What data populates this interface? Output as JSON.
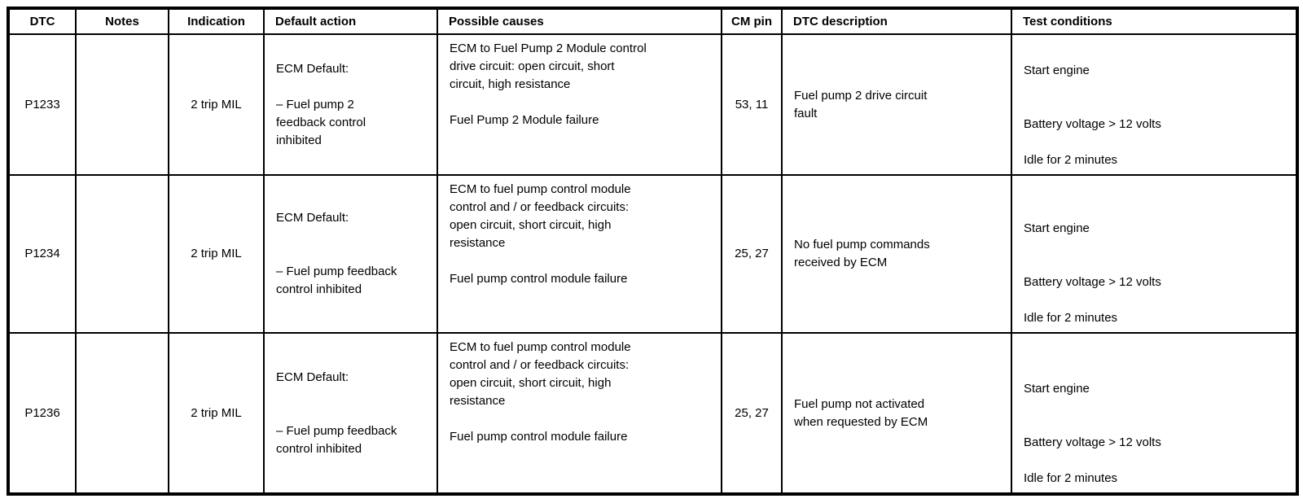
{
  "table": {
    "header": {
      "dtc": "DTC",
      "notes": "Notes",
      "indication": "Indication",
      "default_action": "Default action",
      "possible_causes": "Possible causes",
      "cm_pin": "CM pin",
      "dtc_description": "DTC description",
      "test_conditions": "Test conditions"
    },
    "rows": [
      {
        "dtc": "P1233",
        "notes": "",
        "indication": "2 trip MIL",
        "default_action": "ECM Default:\n\n– Fuel pump 2\nfeedback control\ninhibited",
        "possible_causes": "ECM to Fuel Pump 2 Module control\ndrive circuit: open circuit, short\ncircuit, high resistance\n\nFuel Pump 2 Module failure",
        "cm_pin": "53, 11",
        "dtc_description": "Fuel pump 2 drive circuit\nfault",
        "test_conditions": "Start engine\n\n\nBattery voltage > 12 volts\n\nIdle for 2 minutes"
      },
      {
        "dtc": "P1234",
        "notes": "",
        "indication": "2 trip MIL",
        "default_action": "ECM Default:\n\n\n– Fuel pump feedback\ncontrol inhibited",
        "possible_causes": "ECM to fuel pump control module\ncontrol and / or feedback circuits:\nopen circuit, short circuit, high\nresistance\n\nFuel pump control module failure",
        "cm_pin": "25, 27",
        "dtc_description": "No fuel pump commands\nreceived by ECM",
        "test_conditions": "Start engine\n\n\nBattery voltage > 12 volts\n\nIdle for 2 minutes"
      },
      {
        "dtc": "P1236",
        "notes": "",
        "indication": "2 trip MIL",
        "default_action": "ECM Default:\n\n\n– Fuel pump feedback\ncontrol inhibited",
        "possible_causes": "ECM to fuel pump control module\ncontrol and / or feedback circuits:\nopen circuit, short circuit, high\nresistance\n\nFuel pump control module failure",
        "cm_pin": "25, 27",
        "dtc_description": "Fuel pump not activated\nwhen requested by ECM",
        "test_conditions": "Start engine\n\n\nBattery voltage > 12 volts\n\nIdle for 2 minutes"
      }
    ]
  }
}
